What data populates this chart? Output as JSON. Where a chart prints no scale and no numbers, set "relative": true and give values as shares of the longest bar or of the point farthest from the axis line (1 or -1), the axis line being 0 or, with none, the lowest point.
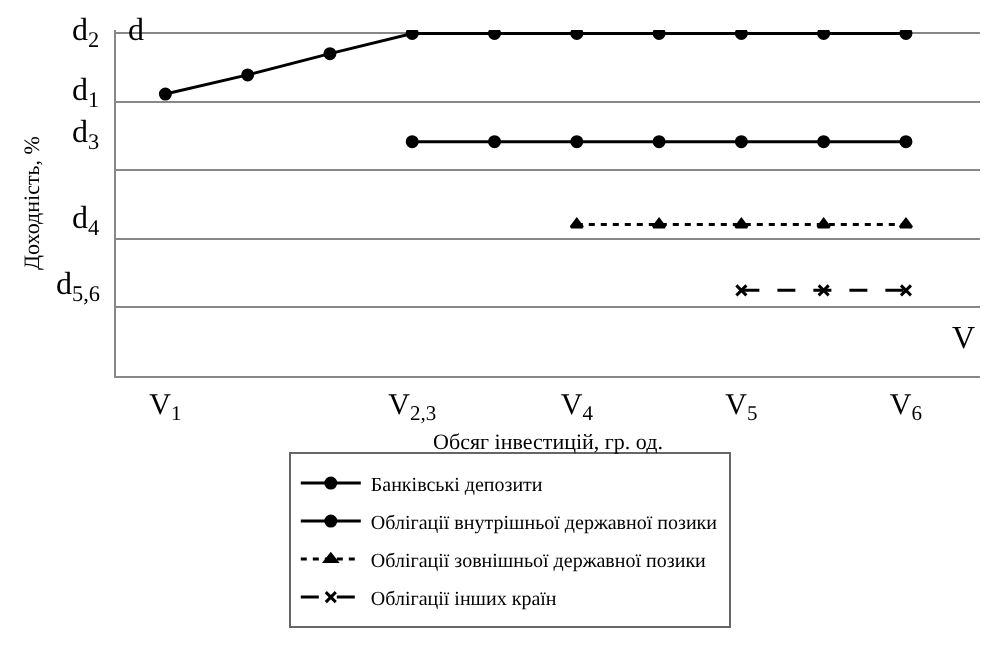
{
  "chart_data": {
    "type": "line",
    "relative": true,
    "xlabel": "Обсяг інвестицій, гр. од.",
    "ylabel": "Доходність, %",
    "categories": [
      "V$_{1}$",
      null,
      null,
      "V$_{2,3}$",
      null,
      "V$_{4}$",
      null,
      "V$_{5}$",
      null,
      "V$_{6}$"
    ],
    "annotations": [
      "d",
      "V",
      "d$_{2}$",
      "d$_{1}$",
      "d$_{3}$",
      "d$_{4}$",
      "d$_{5,6}$"
    ],
    "grid": "y",
    "legend": "bottom",
    "series": [
      {
        "name": "Банківські депозити",
        "color": "#000000",
        "marker": "circle",
        "line_style": "solid",
        "values": [
          0.823,
          0.879,
          0.941,
          1,
          1,
          1,
          1,
          1,
          1,
          1
        ]
      },
      {
        "name": "Облігації внутрішньої державної позики",
        "color": "#000000",
        "marker": "circle",
        "line_style": "solid",
        "values": [
          null,
          null,
          null,
          0.684,
          0.684,
          0.684,
          0.684,
          0.684,
          0.684,
          0.684
        ]
      },
      {
        "name": "Облігації зовнішньої державної позики",
        "color": "#000000",
        "marker": "triangle",
        "line_style": "dotted",
        "values": [
          null,
          null,
          null,
          null,
          null,
          0.442,
          0.442,
          0.442,
          0.442,
          0.442
        ]
      },
      {
        "name": "Облігації інших країн",
        "color": "#000000",
        "marker": "cross",
        "line_style": "dashed",
        "values": [
          null,
          null,
          null,
          null,
          null,
          null,
          null,
          0.25,
          0.25,
          0.25
        ]
      }
    ]
  }
}
